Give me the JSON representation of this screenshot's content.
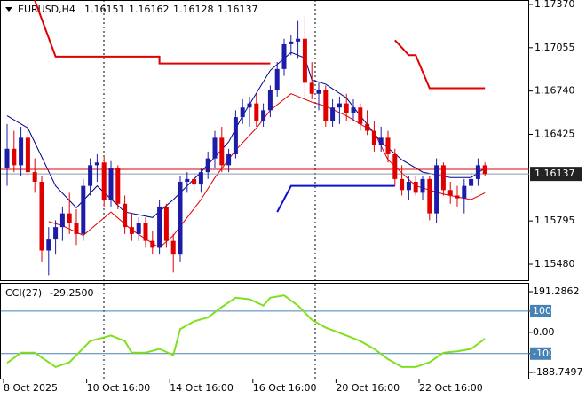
{
  "chart_data": [
    {
      "type": "candlestick",
      "title": "EURUSD,H4",
      "last_ohlc": [
        1.16151,
        1.16162,
        1.16128,
        1.16137
      ],
      "up_color": "#1c1ca8",
      "down_color": "#e00000",
      "ylim": [
        1.15364,
        1.17402
      ],
      "yticks": [
        {
          "value": 1.1737,
          "label": "1.17370"
        },
        {
          "value": 1.17055,
          "label": "1.17055"
        },
        {
          "value": 1.1674,
          "label": "1.16740"
        },
        {
          "value": 1.16425,
          "label": "1.16425"
        },
        {
          "value": 1.15795,
          "label": "1.15795"
        },
        {
          "value": 1.1548,
          "label": "1.15480"
        }
      ],
      "xticks": [
        {
          "value": 0,
          "label": "8 Oct 2025"
        },
        {
          "value": 12,
          "label": "10 Oct 16:00"
        },
        {
          "value": 24,
          "label": "14 Oct 16:00"
        },
        {
          "value": 36,
          "label": "16 Oct 16:00"
        },
        {
          "value": 48,
          "label": "20 Oct 16:00"
        },
        {
          "value": 60,
          "label": "22 Oct 16:00"
        }
      ],
      "ask_line": {
        "value": 1.1617,
        "color": "#e00000"
      },
      "bid_line": {
        "value": 1.16137,
        "color": "#8a9ab0"
      },
      "candles": [
        [
          1.1618,
          1.165,
          1.1605,
          1.1632
        ],
        [
          1.1632,
          1.1645,
          1.1615,
          1.162
        ],
        [
          1.162,
          1.1648,
          1.1612,
          1.164
        ],
        [
          1.164,
          1.165,
          1.1612,
          1.1615
        ],
        [
          1.1615,
          1.1625,
          1.16,
          1.1608
        ],
        [
          1.1608,
          1.1612,
          1.155,
          1.1558
        ],
        [
          1.1558,
          1.1575,
          1.154,
          1.1566
        ],
        [
          1.1566,
          1.158,
          1.1555,
          1.1575
        ],
        [
          1.1575,
          1.159,
          1.1565,
          1.1585
        ],
        [
          1.1585,
          1.16,
          1.157,
          1.1578
        ],
        [
          1.1578,
          1.1588,
          1.1562,
          1.157
        ],
        [
          1.157,
          1.161,
          1.1565,
          1.1605
        ],
        [
          1.1605,
          1.1625,
          1.1598,
          1.162
        ],
        [
          1.162,
          1.1628,
          1.1608,
          1.1622
        ],
        [
          1.1622,
          1.1626,
          1.159,
          1.1595
        ],
        [
          1.1595,
          1.1623,
          1.159,
          1.1618
        ],
        [
          1.1618,
          1.162,
          1.1588,
          1.1592
        ],
        [
          1.1592,
          1.1598,
          1.157,
          1.1575
        ],
        [
          1.1575,
          1.1585,
          1.1565,
          1.157
        ],
        [
          1.157,
          1.1582,
          1.1565,
          1.1578
        ],
        [
          1.1578,
          1.1582,
          1.156,
          1.1565
        ],
        [
          1.1565,
          1.1572,
          1.1555,
          1.156
        ],
        [
          1.156,
          1.1595,
          1.1555,
          1.159
        ],
        [
          1.159,
          1.1592,
          1.156,
          1.1565
        ],
        [
          1.1565,
          1.157,
          1.1542,
          1.1555
        ],
        [
          1.1555,
          1.1612,
          1.155,
          1.1608
        ],
        [
          1.1608,
          1.1615,
          1.16,
          1.161
        ],
        [
          1.161,
          1.1614,
          1.1602,
          1.1606
        ],
        [
          1.1606,
          1.1618,
          1.16,
          1.1615
        ],
        [
          1.1615,
          1.163,
          1.161,
          1.1625
        ],
        [
          1.1625,
          1.1645,
          1.1618,
          1.164
        ],
        [
          1.164,
          1.1648,
          1.1615,
          1.162
        ],
        [
          1.162,
          1.1632,
          1.1615,
          1.1628
        ],
        [
          1.1628,
          1.166,
          1.1625,
          1.1655
        ],
        [
          1.1655,
          1.1668,
          1.165,
          1.1662
        ],
        [
          1.1662,
          1.167,
          1.1648,
          1.1665
        ],
        [
          1.1665,
          1.1672,
          1.1648,
          1.1652
        ],
        [
          1.1652,
          1.1665,
          1.1648,
          1.166
        ],
        [
          1.166,
          1.1678,
          1.1655,
          1.1675
        ],
        [
          1.1675,
          1.1695,
          1.167,
          1.169
        ],
        [
          1.169,
          1.1712,
          1.1685,
          1.1708
        ],
        [
          1.1708,
          1.1715,
          1.17,
          1.171
        ],
        [
          1.171,
          1.1725,
          1.1698,
          1.1712
        ],
        [
          1.1712,
          1.1728,
          1.167,
          1.168
        ],
        [
          1.168,
          1.1695,
          1.1668,
          1.1672
        ],
        [
          1.1672,
          1.168,
          1.166,
          1.1675
        ],
        [
          1.1675,
          1.1678,
          1.1648,
          1.1652
        ],
        [
          1.1652,
          1.1668,
          1.1648,
          1.1662
        ],
        [
          1.1662,
          1.167,
          1.165,
          1.1665
        ],
        [
          1.1665,
          1.1672,
          1.1652,
          1.1658
        ],
        [
          1.1658,
          1.1668,
          1.1652,
          1.1662
        ],
        [
          1.1662,
          1.1665,
          1.1645,
          1.165
        ],
        [
          1.165,
          1.166,
          1.1642,
          1.1645
        ],
        [
          1.1645,
          1.1652,
          1.163,
          1.1635
        ],
        [
          1.1635,
          1.1648,
          1.163,
          1.164
        ],
        [
          1.164,
          1.1645,
          1.1622,
          1.1628
        ],
        [
          1.1628,
          1.1632,
          1.1605,
          1.161
        ],
        [
          1.161,
          1.162,
          1.1598,
          1.1602
        ],
        [
          1.1602,
          1.1612,
          1.1595,
          1.1608
        ],
        [
          1.1608,
          1.1612,
          1.1598,
          1.16
        ],
        [
          1.16,
          1.1612,
          1.1595,
          1.161
        ],
        [
          1.161,
          1.1612,
          1.158,
          1.1585
        ],
        [
          1.1585,
          1.1625,
          1.1578,
          1.162
        ],
        [
          1.162,
          1.1622,
          1.1598,
          1.1602
        ],
        [
          1.1602,
          1.1608,
          1.1592,
          1.1598
        ],
        [
          1.1598,
          1.1605,
          1.159,
          1.1596
        ],
        [
          1.1596,
          1.161,
          1.1585,
          1.1605
        ],
        [
          1.1605,
          1.1615,
          1.16,
          1.161
        ],
        [
          1.161,
          1.1625,
          1.1605,
          1.162
        ],
        [
          1.162,
          1.1622,
          1.1612,
          1.16137
        ]
      ],
      "series": [
        {
          "color": "#00008b",
          "width": 1,
          "x": [
            0,
            3,
            7,
            10,
            13,
            17,
            21,
            24,
            28,
            32,
            34,
            38,
            41,
            43,
            44,
            46,
            49,
            51,
            54,
            57,
            60,
            64,
            67,
            69
          ],
          "values": [
            1.1656,
            1.1647,
            1.1605,
            1.1589,
            1.1605,
            1.1586,
            1.1582,
            1.1595,
            1.1615,
            1.1637,
            1.1656,
            1.1689,
            1.1702,
            1.1698,
            1.1682,
            1.1679,
            1.1669,
            1.1656,
            1.1637,
            1.1624,
            1.1615,
            1.1611,
            1.1611,
            1.1618
          ]
        },
        {
          "color": "#e00000",
          "width": 1,
          "x": [
            6,
            8,
            11,
            15,
            18,
            22,
            24,
            28,
            30,
            33,
            36,
            38,
            41,
            44,
            46,
            49,
            53,
            55,
            59,
            63,
            67,
            69
          ],
          "values": [
            1.1579,
            1.1576,
            1.1569,
            1.1586,
            1.1573,
            1.156,
            1.1569,
            1.1595,
            1.1611,
            1.1631,
            1.1647,
            1.166,
            1.1672,
            1.1666,
            1.1663,
            1.1656,
            1.1644,
            1.1624,
            1.1605,
            1.1599,
            1.1595,
            1.16
          ]
        },
        {
          "color": "#e00000",
          "width": 2,
          "x": [
            4,
            7,
            22,
            22,
            38,
            null,
            56,
            58,
            59,
            61,
            69
          ],
          "values": [
            1.174,
            1.1699,
            1.1699,
            1.1694,
            1.1694,
            null,
            1.1711,
            1.17,
            1.17,
            1.1676,
            1.1676
          ]
        },
        {
          "color": "#1010d0",
          "width": 2,
          "x": [
            39,
            41,
            56
          ],
          "values": [
            1.1586,
            1.1605,
            1.1605
          ]
        }
      ]
    },
    {
      "type": "line",
      "title": "CCI(27)",
      "last_value": -29.25,
      "last_value_label": "-29.2500",
      "color": "#80e020",
      "level_color": "#4682b4",
      "ylim": [
        -222,
        229
      ],
      "yticks": [
        191.2862,
        100,
        {
          "value": 0,
          "label": "0.00"
        },
        -100,
        -188.7497
      ],
      "levels": [
        100,
        -100
      ],
      "x": [
        0,
        2,
        4,
        7,
        9,
        12,
        15,
        17,
        18,
        20,
        22,
        24,
        25,
        27,
        29,
        31,
        33,
        35,
        37,
        38,
        40,
        42,
        44,
        46,
        49,
        51,
        53,
        55,
        57,
        59,
        61,
        63,
        65,
        67,
        69
      ],
      "values": [
        -144,
        -96,
        -96,
        -163,
        -141,
        -41,
        -15,
        -41,
        -96,
        -96,
        -78,
        -107,
        15,
        52,
        70,
        119,
        163,
        156,
        126,
        163,
        174,
        126,
        59,
        22,
        -15,
        -41,
        -78,
        -126,
        -163,
        -163,
        -141,
        -96,
        -89,
        -78,
        -30
      ]
    }
  ]
}
